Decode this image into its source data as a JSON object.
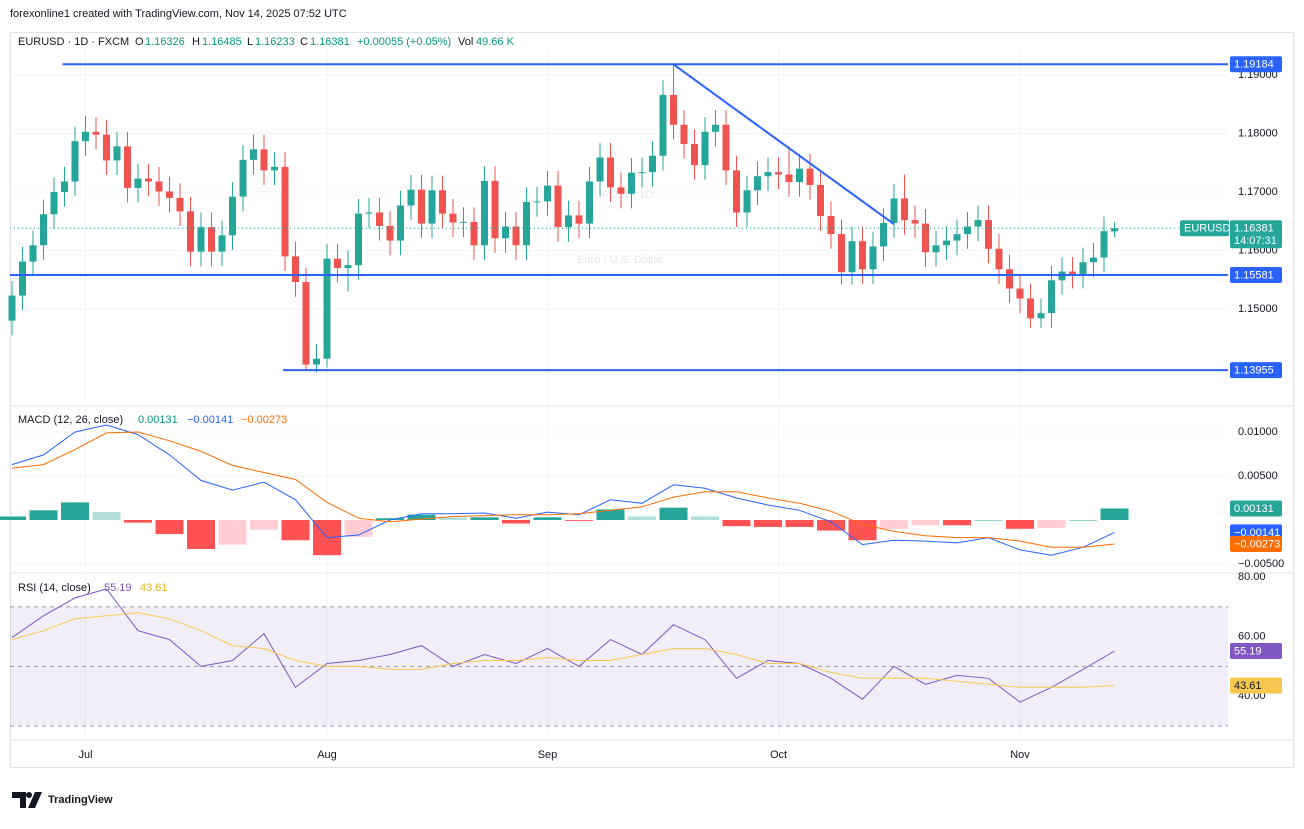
{
  "header": "forexonline1 created with TradingView.com, Nov 14, 2025 07:52 UTC",
  "footer": "TradingView",
  "chart_data": [
    {
      "type": "candlestick",
      "title": "EURUSD · 1D · FXCM",
      "watermark": "EURUSD, 1D",
      "subtitle": "Euro / U.S. Dollar",
      "ohlc_labels": [
        "O",
        "H",
        "L",
        "C"
      ],
      "change": "+0.00055 (+0.05%)",
      "volume_label": "Vol",
      "volume": "49.66 K",
      "up_color": "#26a69a",
      "down_color": "#ef5350",
      "categories": [
        null,
        null,
        null,
        null,
        null,
        null,
        null,
        "Jul",
        null,
        null,
        null,
        null,
        null,
        null,
        null,
        null,
        null,
        null,
        null,
        null,
        null,
        null,
        null,
        null,
        null,
        null,
        null,
        null,
        null,
        null,
        "Aug",
        null,
        null,
        null,
        null,
        null,
        null,
        null,
        null,
        null,
        null,
        null,
        null,
        null,
        null,
        null,
        null,
        null,
        null,
        null,
        null,
        "Sep",
        null,
        null,
        null,
        null,
        null,
        null,
        null,
        null,
        null,
        null,
        null,
        null,
        null,
        null,
        null,
        null,
        null,
        null,
        null,
        null,
        null,
        "Oct",
        null,
        null,
        null,
        null,
        null,
        null,
        null,
        null,
        null,
        null,
        null,
        null,
        null,
        null,
        null,
        null,
        null,
        null,
        null,
        null,
        null,
        null,
        "Nov",
        null,
        null,
        null,
        null,
        null,
        null,
        null,
        null,
        null
      ],
      "open": [
        1.148,
        1.1523,
        1.1581,
        1.1609,
        1.1662,
        1.17,
        1.1718,
        1.1787,
        1.1803,
        1.1798,
        1.1754,
        1.1778,
        1.1707,
        1.1723,
        1.1718,
        1.1701,
        1.169,
        1.1667,
        1.1598,
        1.164,
        1.1598,
        1.1626,
        1.1692,
        1.1755,
        1.1773,
        1.1737,
        1.1743,
        1.159,
        1.1546,
        1.1405,
        1.1415,
        1.1586,
        1.157,
        1.1575,
        1.1663,
        1.1665,
        1.1642,
        1.1617,
        1.1677,
        1.1704,
        1.1646,
        1.1703,
        1.1663,
        1.1648,
        1.1649,
        1.1609,
        1.1719,
        1.1621,
        1.1641,
        1.1609,
        1.1683,
        1.1684,
        1.1711,
        1.164,
        1.166,
        1.1646,
        1.1718,
        1.1759,
        1.1708,
        1.1697,
        1.1733,
        1.1734,
        1.1762,
        1.1866,
        1.1815,
        1.1782,
        1.1746,
        1.1803,
        1.1815,
        1.1737,
        1.1665,
        1.1703,
        1.1727,
        1.1734,
        1.173,
        1.1717,
        1.174,
        1.1712,
        1.1659,
        1.1628,
        1.1563,
        1.1616,
        1.1568,
        1.1607,
        1.1647,
        1.1689,
        1.1652,
        1.1646,
        1.1597,
        1.1609,
        1.1617,
        1.1628,
        1.1641,
        1.1652,
        1.1603,
        1.1568,
        1.1535,
        1.1518,
        1.1484,
        1.1493,
        1.1549,
        1.1564,
        1.156,
        1.158,
        1.1588,
        1.16326
      ],
      "high": [
        1.1548,
        1.1606,
        1.1634,
        1.1687,
        1.1725,
        1.1743,
        1.1812,
        1.183,
        1.1828,
        1.1823,
        1.1803,
        1.1803,
        1.1748,
        1.1748,
        1.1743,
        1.1726,
        1.1715,
        1.1692,
        1.1665,
        1.1665,
        1.1651,
        1.1717,
        1.178,
        1.1798,
        1.1798,
        1.1768,
        1.1768,
        1.1615,
        1.1571,
        1.144,
        1.1611,
        1.1611,
        1.16,
        1.1688,
        1.169,
        1.169,
        1.1667,
        1.1702,
        1.1729,
        1.1729,
        1.1728,
        1.1728,
        1.1688,
        1.1674,
        1.1674,
        1.1744,
        1.1744,
        1.1666,
        1.1666,
        1.1708,
        1.1709,
        1.1736,
        1.1736,
        1.1685,
        1.1685,
        1.1743,
        1.1784,
        1.1784,
        1.1733,
        1.1758,
        1.1759,
        1.1787,
        1.1891,
        1.1918,
        1.184,
        1.1807,
        1.1828,
        1.184,
        1.184,
        1.1762,
        1.1728,
        1.1752,
        1.1759,
        1.1759,
        1.1778,
        1.1765,
        1.1765,
        1.1737,
        1.1684,
        1.1653,
        1.1641,
        1.1641,
        1.1632,
        1.1672,
        1.1714,
        1.173,
        1.1677,
        1.1671,
        1.1634,
        1.1642,
        1.1653,
        1.1666,
        1.1677,
        1.1677,
        1.1628,
        1.1593,
        1.156,
        1.1543,
        1.1518,
        1.1574,
        1.1589,
        1.1589,
        1.1605,
        1.1613,
        1.1658,
        1.16485
      ],
      "low": [
        1.1455,
        1.1498,
        1.1556,
        1.1584,
        1.1637,
        1.1675,
        1.1693,
        1.1762,
        1.1773,
        1.1729,
        1.1729,
        1.1682,
        1.1682,
        1.1693,
        1.1676,
        1.1665,
        1.1642,
        1.1573,
        1.1573,
        1.1573,
        1.1573,
        1.1601,
        1.1667,
        1.173,
        1.1712,
        1.1712,
        1.1565,
        1.1521,
        1.1395,
        1.1392,
        1.14,
        1.1545,
        1.153,
        1.155,
        1.1638,
        1.1617,
        1.1592,
        1.1592,
        1.1652,
        1.1621,
        1.1621,
        1.1638,
        1.1623,
        1.1623,
        1.1584,
        1.1584,
        1.1596,
        1.1596,
        1.1584,
        1.1584,
        1.1658,
        1.1659,
        1.1615,
        1.1615,
        1.1621,
        1.1621,
        1.1693,
        1.1683,
        1.1672,
        1.1672,
        1.1708,
        1.1709,
        1.1737,
        1.179,
        1.1757,
        1.1721,
        1.1721,
        1.1778,
        1.1712,
        1.164,
        1.164,
        1.1678,
        1.1702,
        1.1705,
        1.1692,
        1.1692,
        1.1687,
        1.1634,
        1.1603,
        1.1542,
        1.1542,
        1.1543,
        1.1543,
        1.1582,
        1.1622,
        1.1627,
        1.1621,
        1.1572,
        1.1572,
        1.1584,
        1.1592,
        1.1603,
        1.1616,
        1.1578,
        1.1543,
        1.151,
        1.1493,
        1.1468,
        1.1468,
        1.1468,
        1.1524,
        1.1535,
        1.1535,
        1.1555,
        1.1563,
        1.16233
      ],
      "close": [
        1.1523,
        1.1581,
        1.1609,
        1.1662,
        1.17,
        1.1718,
        1.1787,
        1.1803,
        1.1798,
        1.1754,
        1.1778,
        1.1707,
        1.1723,
        1.1718,
        1.1701,
        1.169,
        1.1667,
        1.1598,
        1.164,
        1.1598,
        1.1626,
        1.1692,
        1.1755,
        1.1773,
        1.1737,
        1.1743,
        1.159,
        1.1546,
        1.1405,
        1.1415,
        1.1586,
        1.157,
        1.1575,
        1.1663,
        1.1665,
        1.1642,
        1.1617,
        1.1677,
        1.1704,
        1.1646,
        1.1703,
        1.1663,
        1.1648,
        1.1649,
        1.1609,
        1.1719,
        1.1621,
        1.1641,
        1.1609,
        1.1683,
        1.1684,
        1.1711,
        1.164,
        1.166,
        1.1646,
        1.1718,
        1.1759,
        1.1708,
        1.1697,
        1.1733,
        1.1734,
        1.1762,
        1.1866,
        1.1815,
        1.1782,
        1.1746,
        1.1803,
        1.1815,
        1.1737,
        1.1665,
        1.1703,
        1.1727,
        1.1734,
        1.173,
        1.1717,
        1.174,
        1.1712,
        1.1659,
        1.1628,
        1.1563,
        1.1616,
        1.1568,
        1.1607,
        1.1647,
        1.1689,
        1.1652,
        1.1646,
        1.1597,
        1.1609,
        1.1617,
        1.1628,
        1.1641,
        1.1652,
        1.1603,
        1.1568,
        1.1535,
        1.1518,
        1.1484,
        1.1493,
        1.1549,
        1.1564,
        1.156,
        1.158,
        1.1588,
        1.1633,
        1.16381
      ],
      "ylim": [
        1.13359,
        1.19462
      ],
      "yticks": [
        {
          "value": 1.19,
          "label": "1.19000"
        },
        {
          "value": 1.18,
          "label": "1.18000"
        },
        {
          "value": 1.17,
          "label": "1.17000"
        },
        {
          "value": 1.16,
          "label": "1.16000"
        },
        {
          "value": 1.15,
          "label": "1.15000"
        }
      ],
      "grid": true,
      "levels": [
        {
          "value": 1.19184,
          "label": "1.19184",
          "start": 5,
          "color": "#2962ff"
        },
        {
          "value": 1.15581,
          "label": "1.15581",
          "start": 0,
          "color": "#2962ff"
        },
        {
          "value": 1.13955,
          "label": "1.13955",
          "start": 26,
          "color": "#2962ff"
        }
      ],
      "trendline": {
        "x": [
          63,
          84
        ],
        "y": [
          1.1918,
          1.1645
        ],
        "color": "#2962ff"
      },
      "last_price": {
        "value": 1.16381,
        "label": "1.16381",
        "symbol": "EURUSD",
        "countdown": "14:07:31",
        "color": "#26a69a"
      }
    },
    {
      "type": "macd",
      "title": "MACD (12, 26, close)",
      "x": [
        0,
        3,
        6,
        9,
        12,
        15,
        18,
        21,
        24,
        27,
        30,
        33,
        36,
        39,
        42,
        45,
        48,
        51,
        54,
        57,
        60,
        63,
        66,
        69,
        72,
        75,
        78,
        81,
        84,
        87,
        90,
        93,
        96,
        99,
        102,
        105
      ],
      "ylim": [
        -0.00591,
        0.01284
      ],
      "yticks": [
        {
          "value": 0.01,
          "label": "0.01000"
        },
        {
          "value": 0.005,
          "label": "0.00500"
        },
        {
          "value": -0.005,
          "label": "−0.00500"
        }
      ],
      "series": [
        {
          "kind": "line",
          "color": "#2962ff",
          "values": [
            0.0063,
            0.0074,
            0.01,
            0.0108,
            0.0097,
            0.0074,
            0.0045,
            0.0034,
            0.0043,
            0.0023,
            -0.002,
            -0.0017,
            0.0,
            0.0007,
            0.0007,
            0.0008,
            0.0002,
            0.0009,
            0.0006,
            0.0023,
            0.0019,
            0.004,
            0.0036,
            0.0025,
            0.0017,
            0.0011,
            -0.0002,
            -0.0028,
            -0.0023,
            -0.0024,
            -0.0026,
            -0.002,
            -0.0034,
            -0.004,
            -0.0031,
            -0.00141
          ],
          "last_value_label": "−0.00141"
        },
        {
          "kind": "line",
          "color": "#ff6d00",
          "values": [
            0.0059,
            0.0063,
            0.008,
            0.0099,
            0.01,
            0.009,
            0.0078,
            0.0062,
            0.0054,
            0.0046,
            0.002,
            0.0002,
            -0.0002,
            0.0001,
            0.0004,
            0.0005,
            0.0006,
            0.0006,
            0.0007,
            0.0011,
            0.0015,
            0.0026,
            0.0032,
            0.0032,
            0.0025,
            0.0019,
            0.001,
            -0.0005,
            -0.0013,
            -0.0018,
            -0.002,
            -0.002,
            -0.0024,
            -0.0031,
            -0.0031,
            -0.00273
          ],
          "last_value_label": "−0.00273"
        },
        {
          "kind": "histogram",
          "color": "#26a69a",
          "values": [
            0.0004,
            0.0011,
            0.002,
            0.0009,
            -0.0003,
            -0.0016,
            -0.0033,
            -0.0028,
            -0.0011,
            -0.0023,
            -0.004,
            -0.0019,
            0.0002,
            0.0006,
            0.0003,
            0.0003,
            -0.0004,
            0.0003,
            -0.0001,
            0.0012,
            0.0004,
            0.0014,
            0.0004,
            -0.0007,
            -0.0008,
            -0.0008,
            -0.0012,
            -0.0023,
            -0.001,
            -0.0006,
            -0.0006,
            0.0,
            -0.001,
            -0.0009,
            0.0,
            0.00131
          ],
          "last_value_label": "0.00131"
        }
      ]
    },
    {
      "type": "rsi",
      "title": "RSI (14, close)",
      "x": [
        0,
        3,
        6,
        9,
        12,
        15,
        18,
        21,
        24,
        27,
        30,
        33,
        36,
        39,
        42,
        45,
        48,
        51,
        54,
        57,
        60,
        63,
        66,
        69,
        72,
        75,
        78,
        81,
        84,
        87,
        90,
        93,
        96,
        99,
        102,
        105
      ],
      "ylim": [
        25.3,
        80.7
      ],
      "yticks": [
        {
          "value": 80,
          "label": "80.00"
        },
        {
          "value": 60,
          "label": "60.00"
        },
        {
          "value": 40,
          "label": "40.00"
        }
      ],
      "band": [
        30,
        70
      ],
      "middle": 50,
      "series": [
        {
          "kind": "line",
          "color": "#7e57c2",
          "values": [
            59.7,
            67,
            73,
            76,
            62,
            59,
            50,
            52,
            61,
            43,
            51,
            52,
            54,
            57,
            50,
            54,
            51,
            56,
            50,
            59,
            54,
            64,
            59,
            46,
            52,
            51,
            46,
            39,
            50,
            44,
            47,
            46,
            38,
            43,
            49,
            55.19
          ]
        },
        {
          "kind": "line",
          "color": "#f9c74f",
          "values": [
            59,
            62,
            66,
            67,
            68,
            66,
            62,
            57,
            56,
            52,
            50,
            50,
            49,
            49,
            51,
            52,
            52,
            53,
            52,
            52,
            54,
            56,
            56,
            54,
            51,
            51,
            48,
            46,
            46,
            46,
            45,
            44,
            43,
            43,
            43,
            43.61
          ]
        }
      ]
    }
  ]
}
